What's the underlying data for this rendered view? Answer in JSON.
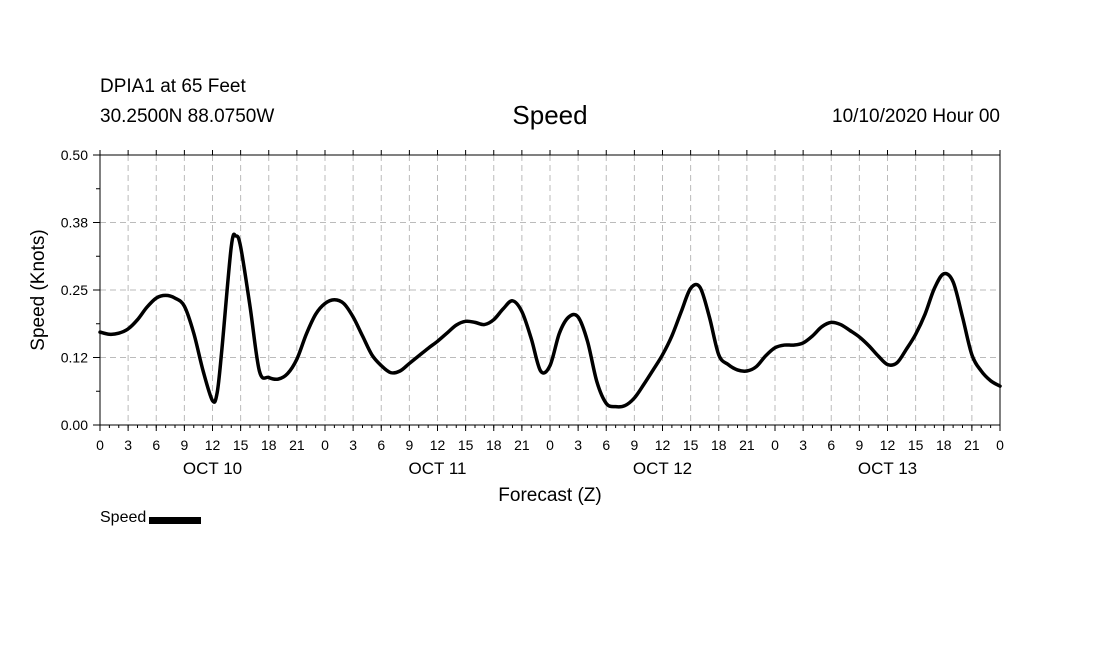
{
  "header": {
    "station": "DPIA1 at 65 Feet",
    "coordinates": "30.2500N 88.0750W",
    "title": "Speed",
    "timestamp": "10/10/2020 Hour 00"
  },
  "legend": {
    "label": "Speed",
    "color": "#000000"
  },
  "chart_data": {
    "type": "line",
    "title": "Speed",
    "xlabel": "Forecast (Z)",
    "ylabel": "Speed (Knots)",
    "xlim": [
      0,
      96
    ],
    "ylim": [
      0.0,
      0.5
    ],
    "yticks": [
      "0.00",
      "0.12",
      "0.25",
      "0.38",
      "0.50"
    ],
    "ytick_values": [
      0.0,
      0.125,
      0.25,
      0.375,
      0.5
    ],
    "xtick_hours": [
      0,
      3,
      6,
      9,
      12,
      15,
      18,
      21,
      24,
      27,
      30,
      33,
      36,
      39,
      42,
      45,
      48,
      51,
      54,
      57,
      60,
      63,
      66,
      69,
      72,
      75,
      78,
      81,
      84,
      87,
      90,
      93,
      96
    ],
    "xtick_labels": [
      "0",
      "3",
      "6",
      "9",
      "12",
      "15",
      "18",
      "21",
      "0",
      "3",
      "6",
      "9",
      "12",
      "15",
      "18",
      "21",
      "0",
      "3",
      "6",
      "9",
      "12",
      "15",
      "18",
      "21",
      "0",
      "3",
      "6",
      "9",
      "12",
      "15",
      "18",
      "21",
      "0"
    ],
    "day_labels": [
      {
        "label": "OCT 10",
        "hour": 12
      },
      {
        "label": "OCT 11",
        "hour": 36
      },
      {
        "label": "OCT 12",
        "hour": 60
      },
      {
        "label": "OCT 13",
        "hour": 84
      }
    ],
    "grid": true,
    "series": [
      {
        "name": "Speed",
        "color": "#000000",
        "hours": [
          0,
          1,
          2,
          3,
          4,
          5,
          6,
          7,
          8,
          9,
          10,
          11,
          12,
          12.5,
          13,
          14,
          14.5,
          15,
          16,
          17,
          18,
          19,
          20,
          21,
          22,
          23,
          24,
          25,
          26,
          27,
          28,
          29,
          30,
          31,
          32,
          33,
          34,
          35,
          36,
          37,
          38,
          39,
          40,
          41,
          42,
          43,
          44,
          45,
          46,
          47,
          48,
          49,
          50,
          51,
          52,
          53,
          54,
          55,
          56,
          57,
          58,
          59,
          60,
          61,
          62,
          63,
          64,
          65,
          66,
          67,
          68,
          69,
          70,
          71,
          72,
          73,
          74,
          75,
          76,
          77,
          78,
          79,
          80,
          81,
          82,
          83,
          84,
          85,
          86,
          87,
          88,
          89,
          90,
          91,
          92,
          93,
          94,
          95,
          96
        ],
        "values": [
          0.172,
          0.168,
          0.17,
          0.178,
          0.195,
          0.218,
          0.235,
          0.24,
          0.235,
          0.22,
          0.17,
          0.1,
          0.045,
          0.06,
          0.14,
          0.33,
          0.35,
          0.33,
          0.22,
          0.1,
          0.088,
          0.085,
          0.095,
          0.122,
          0.168,
          0.205,
          0.225,
          0.232,
          0.225,
          0.2,
          0.165,
          0.13,
          0.11,
          0.097,
          0.1,
          0.114,
          0.128,
          0.142,
          0.155,
          0.17,
          0.185,
          0.192,
          0.19,
          0.186,
          0.195,
          0.215,
          0.23,
          0.21,
          0.16,
          0.1,
          0.11,
          0.17,
          0.2,
          0.2,
          0.155,
          0.08,
          0.04,
          0.034,
          0.036,
          0.05,
          0.075,
          0.102,
          0.13,
          0.165,
          0.21,
          0.253,
          0.255,
          0.2,
          0.13,
          0.112,
          0.102,
          0.1,
          0.108,
          0.128,
          0.143,
          0.148,
          0.148,
          0.152,
          0.165,
          0.182,
          0.19,
          0.186,
          0.175,
          0.163,
          0.147,
          0.128,
          0.112,
          0.115,
          0.14,
          0.168,
          0.205,
          0.253,
          0.28,
          0.265,
          0.2,
          0.13,
          0.1,
          0.082,
          0.072
        ]
      }
    ]
  }
}
